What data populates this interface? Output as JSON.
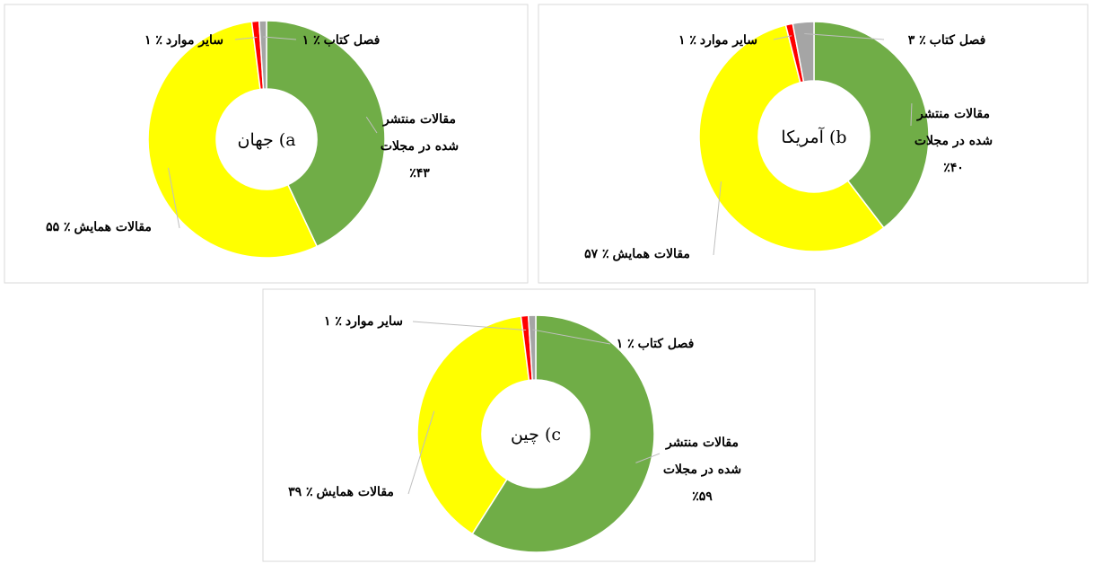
{
  "chart_data": [
    {
      "type": "pie",
      "title": "a) جهان",
      "categories": [
        "مقالات منتشر شده در مجلات",
        "مقالات همایش",
        "سایر موارد",
        "فصل کتاب"
      ],
      "values": [
        43,
        55,
        1,
        1
      ],
      "value_labels": [
        "٪۴۳",
        "٪ ۵۵",
        "٪ ۱",
        "٪ ۱"
      ],
      "colors": [
        "#70ad47",
        "#ffff00",
        "#ff0000",
        "#a5a5a5"
      ]
    },
    {
      "type": "pie",
      "title": "b) آمریکا",
      "categories": [
        "مقالات منتشر شده در مجلات",
        "مقالات همایش",
        "سایر موارد",
        "فصل کتاب"
      ],
      "values": [
        40,
        57,
        1,
        3
      ],
      "value_labels": [
        "٪۴۰",
        "٪ ۵۷",
        "٪ ۱",
        "٪ ۳"
      ],
      "colors": [
        "#70ad47",
        "#ffff00",
        "#ff0000",
        "#a5a5a5"
      ]
    },
    {
      "type": "pie",
      "title": "c) چین",
      "categories": [
        "مقالات منتشر شده در مجلات",
        "مقالات همایش",
        "سایر موارد",
        "فصل کتاب"
      ],
      "values": [
        59,
        39,
        1,
        1
      ],
      "value_labels": [
        "٪۵۹",
        "٪ ۳۹",
        "٪ ۱",
        "٪ ۱"
      ],
      "colors": [
        "#70ad47",
        "#ffff00",
        "#ff0000",
        "#a5a5a5"
      ]
    }
  ]
}
